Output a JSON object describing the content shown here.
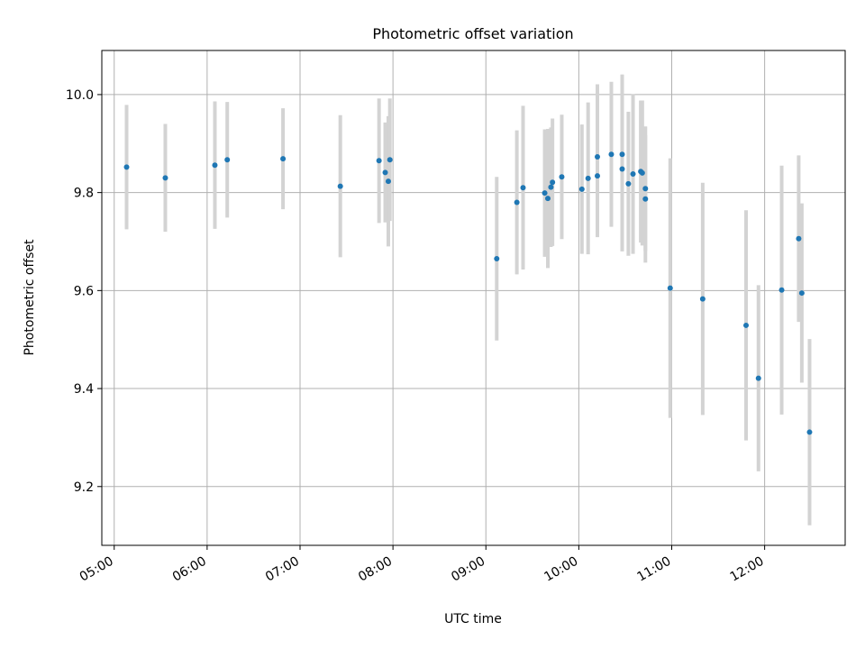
{
  "chart_data": {
    "type": "scatter",
    "title": "Photometric offset variation",
    "xlabel": "UTC time",
    "ylabel": "Photometric offset",
    "x_axis": "time",
    "xlim": [
      "04:52",
      "12:52"
    ],
    "ylim": [
      9.08,
      10.09
    ],
    "xticks": [
      "05:00",
      "06:00",
      "07:00",
      "08:00",
      "09:00",
      "10:00",
      "11:00",
      "12:00"
    ],
    "yticks": [
      9.2,
      9.4,
      9.6,
      9.8,
      10.0
    ],
    "ytick_labels": [
      "9.2",
      "9.4",
      "9.6",
      "9.8",
      "10.0"
    ],
    "grid": true,
    "colors": {
      "point": "#1f77b4",
      "errorbar": "#d3d3d3",
      "grid": "#b0b0b0"
    },
    "points": [
      {
        "time": "05:08",
        "y": 9.852,
        "err": 0.127
      },
      {
        "time": "05:33",
        "y": 9.83,
        "err": 0.11
      },
      {
        "time": "06:05",
        "y": 9.856,
        "err": 0.13
      },
      {
        "time": "06:13",
        "y": 9.867,
        "err": 0.118
      },
      {
        "time": "06:49",
        "y": 9.869,
        "err": 0.103
      },
      {
        "time": "07:26",
        "y": 9.813,
        "err": 0.145
      },
      {
        "time": "07:51",
        "y": 9.865,
        "err": 0.127
      },
      {
        "time": "07:55",
        "y": 9.841,
        "err": 0.102
      },
      {
        "time": "07:57",
        "y": 9.823,
        "err": 0.133
      },
      {
        "time": "07:58",
        "y": 9.867,
        "err": 0.125
      },
      {
        "time": "09:07",
        "y": 9.665,
        "err": 0.167
      },
      {
        "time": "09:20",
        "y": 9.78,
        "err": 0.147
      },
      {
        "time": "09:24",
        "y": 9.81,
        "err": 0.167
      },
      {
        "time": "09:38",
        "y": 9.799,
        "err": 0.13
      },
      {
        "time": "09:40",
        "y": 9.788,
        "err": 0.142
      },
      {
        "time": "09:42",
        "y": 9.811,
        "err": 0.122
      },
      {
        "time": "09:43",
        "y": 9.821,
        "err": 0.13
      },
      {
        "time": "09:49",
        "y": 9.832,
        "err": 0.127
      },
      {
        "time": "10:02",
        "y": 9.807,
        "err": 0.132
      },
      {
        "time": "10:06",
        "y": 9.829,
        "err": 0.155
      },
      {
        "time": "10:12",
        "y": 9.873,
        "err": 0.148
      },
      {
        "time": "10:12",
        "y": 9.834,
        "err": 0.125
      },
      {
        "time": "10:21",
        "y": 9.878,
        "err": 0.148
      },
      {
        "time": "10:28",
        "y": 9.878,
        "err": 0.163
      },
      {
        "time": "10:28",
        "y": 9.848,
        "err": 0.168
      },
      {
        "time": "10:32",
        "y": 9.818,
        "err": 0.147
      },
      {
        "time": "10:35",
        "y": 9.838,
        "err": 0.163
      },
      {
        "time": "10:40",
        "y": 9.843,
        "err": 0.145
      },
      {
        "time": "10:41",
        "y": 9.84,
        "err": 0.148
      },
      {
        "time": "10:43",
        "y": 9.808,
        "err": 0.127
      },
      {
        "time": "10:43",
        "y": 9.787,
        "err": 0.13
      },
      {
        "time": "10:59",
        "y": 9.605,
        "err": 0.265
      },
      {
        "time": "11:20",
        "y": 9.583,
        "err": 0.237
      },
      {
        "time": "11:48",
        "y": 9.529,
        "err": 0.235
      },
      {
        "time": "11:56",
        "y": 9.421,
        "err": 0.19
      },
      {
        "time": "12:11",
        "y": 9.601,
        "err": 0.254
      },
      {
        "time": "12:22",
        "y": 9.706,
        "err": 0.17
      },
      {
        "time": "12:24",
        "y": 9.595,
        "err": 0.183
      },
      {
        "time": "12:29",
        "y": 9.311,
        "err": 0.19
      }
    ]
  }
}
